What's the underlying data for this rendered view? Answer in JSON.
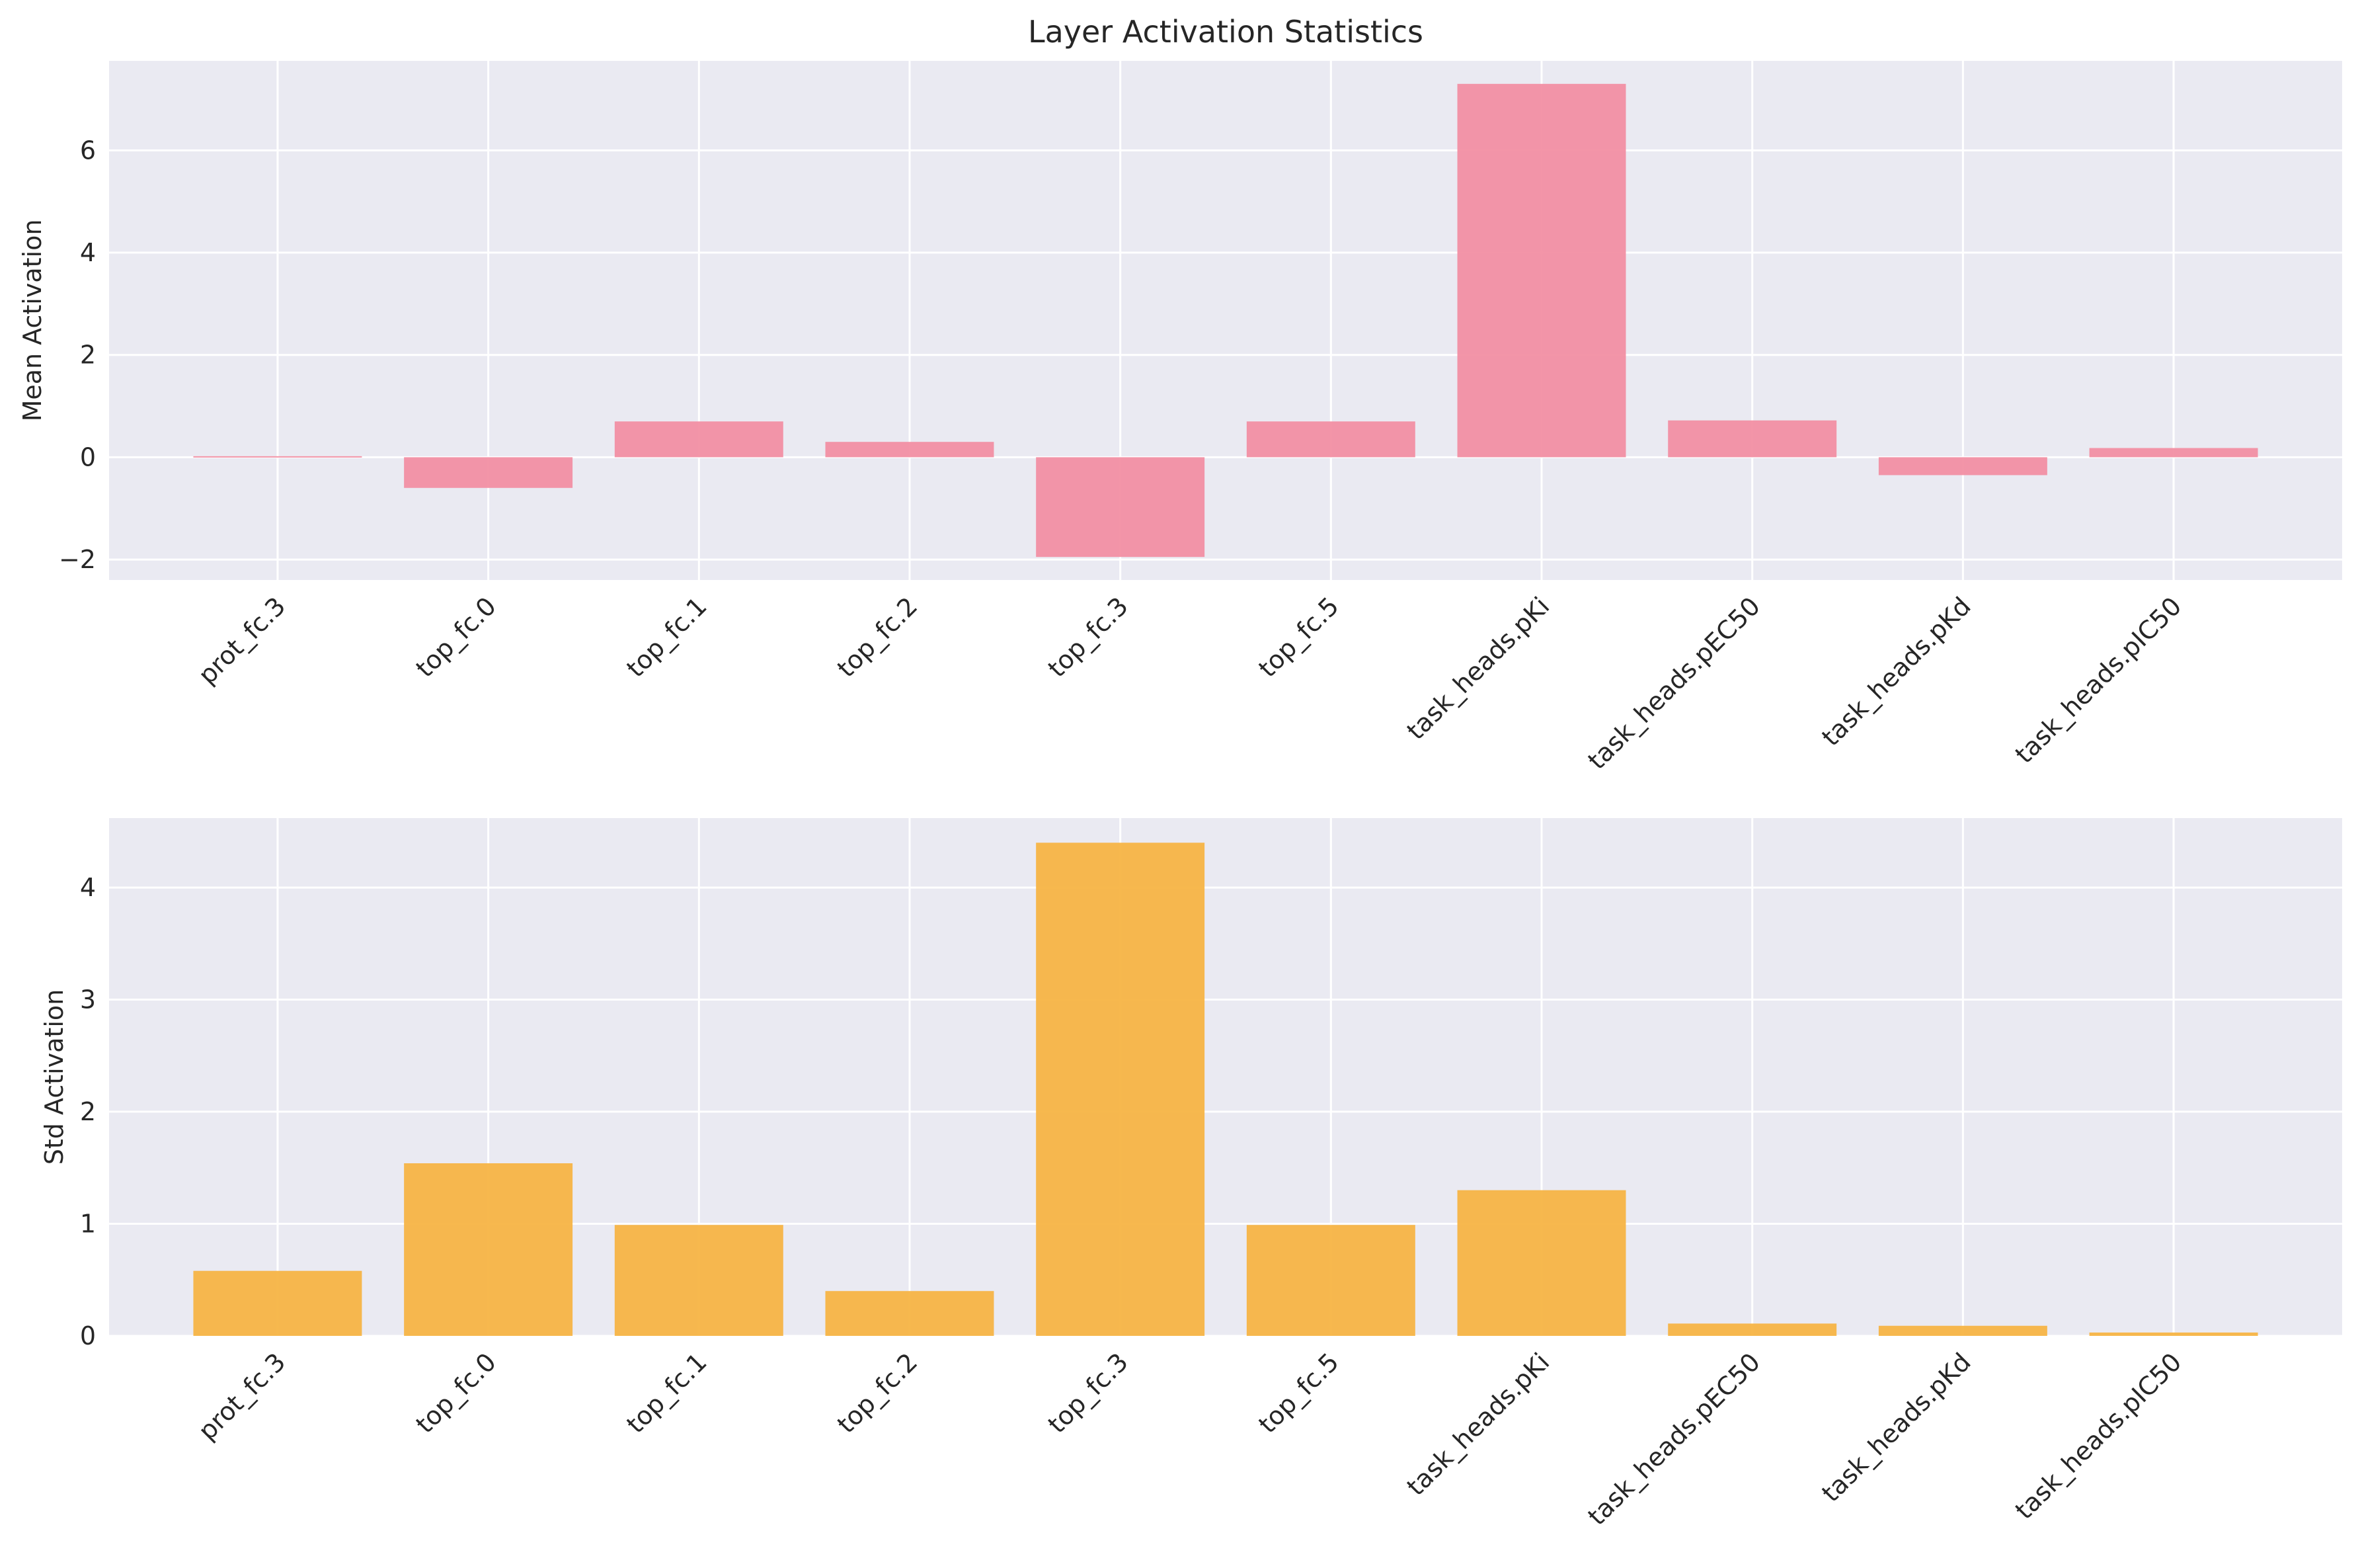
{
  "title": "Layer Activation Statistics",
  "colors": {
    "background": "#eaeaf2",
    "grid": "#ffffff",
    "mean_bar": "#f28fa3",
    "std_bar": "#f7b445",
    "text": "#262626"
  },
  "chart_data": [
    {
      "type": "bar",
      "title": "Layer Activation Statistics",
      "ylabel": "Mean Activation",
      "xlabel": "",
      "categories": [
        "prot_fc.3",
        "top_fc.0",
        "top_fc.1",
        "top_fc.2",
        "top_fc.3",
        "top_fc.5",
        "task_heads.pKi",
        "task_heads.pEC50",
        "task_heads.pKd",
        "task_heads.pIC50"
      ],
      "values": [
        0.02,
        -0.6,
        0.7,
        0.3,
        -1.95,
        0.7,
        7.3,
        0.72,
        -0.35,
        0.18
      ],
      "ylim": [
        -2.4,
        7.75
      ],
      "yticks": [
        -2,
        0,
        2,
        4,
        6
      ],
      "ytick_labels": [
        "−2",
        "0",
        "2",
        "4",
        "6"
      ],
      "grid": true,
      "color": "#f28fa3"
    },
    {
      "type": "bar",
      "title": "",
      "ylabel": "Std Activation",
      "xlabel": "",
      "categories": [
        "prot_fc.3",
        "top_fc.0",
        "top_fc.1",
        "top_fc.2",
        "top_fc.3",
        "top_fc.5",
        "task_heads.pKi",
        "task_heads.pEC50",
        "task_heads.pKd",
        "task_heads.pIC50"
      ],
      "values": [
        0.58,
        1.54,
        0.99,
        0.4,
        4.4,
        0.99,
        1.3,
        0.11,
        0.09,
        0.03
      ],
      "ylim": [
        0,
        4.62
      ],
      "yticks": [
        0,
        1,
        2,
        3,
        4
      ],
      "ytick_labels": [
        "0",
        "1",
        "2",
        "3",
        "4"
      ],
      "grid": true,
      "color": "#f7b445"
    }
  ]
}
